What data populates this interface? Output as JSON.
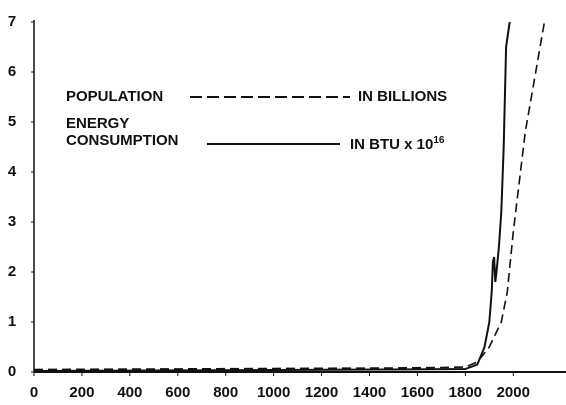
{
  "chart_data": {
    "type": "line",
    "series": [
      {
        "name": "POPULATION",
        "unit": "IN BILLIONS",
        "color": "#111111",
        "linestyle": "dashed",
        "x": [
          0,
          500,
          1000,
          1500,
          1700,
          1800,
          1850,
          1900,
          1950,
          1975,
          2000,
          2050,
          2130
        ],
        "values": [
          0.05,
          0.06,
          0.07,
          0.08,
          0.09,
          0.1,
          0.2,
          0.5,
          1.0,
          1.6,
          2.8,
          4.8,
          7
        ]
      },
      {
        "name": "ENERGY CONSUMPTION",
        "unit": "IN BTU x 10",
        "unit_sup": "16",
        "color": "#111111",
        "linestyle": "solid",
        "x": [
          0,
          500,
          1000,
          1500,
          1800,
          1850,
          1880,
          1900,
          1910,
          1915,
          1920,
          1925,
          1930,
          1940,
          1950,
          1960,
          1970,
          1985
        ],
        "values": [
          0.02,
          0.03,
          0.04,
          0.05,
          0.06,
          0.15,
          0.5,
          1.0,
          1.6,
          2.2,
          2.3,
          1.8,
          2.0,
          2.5,
          3.2,
          4.5,
          6.5,
          7
        ]
      }
    ],
    "xlim": [
      0,
      2220
    ],
    "xticks": [
      0,
      200,
      400,
      600,
      800,
      1000,
      1200,
      1400,
      1600,
      1800,
      2000
    ],
    "ylim": [
      0,
      7
    ],
    "yticks": [
      0,
      1,
      2,
      3,
      4,
      5,
      6,
      7
    ]
  }
}
